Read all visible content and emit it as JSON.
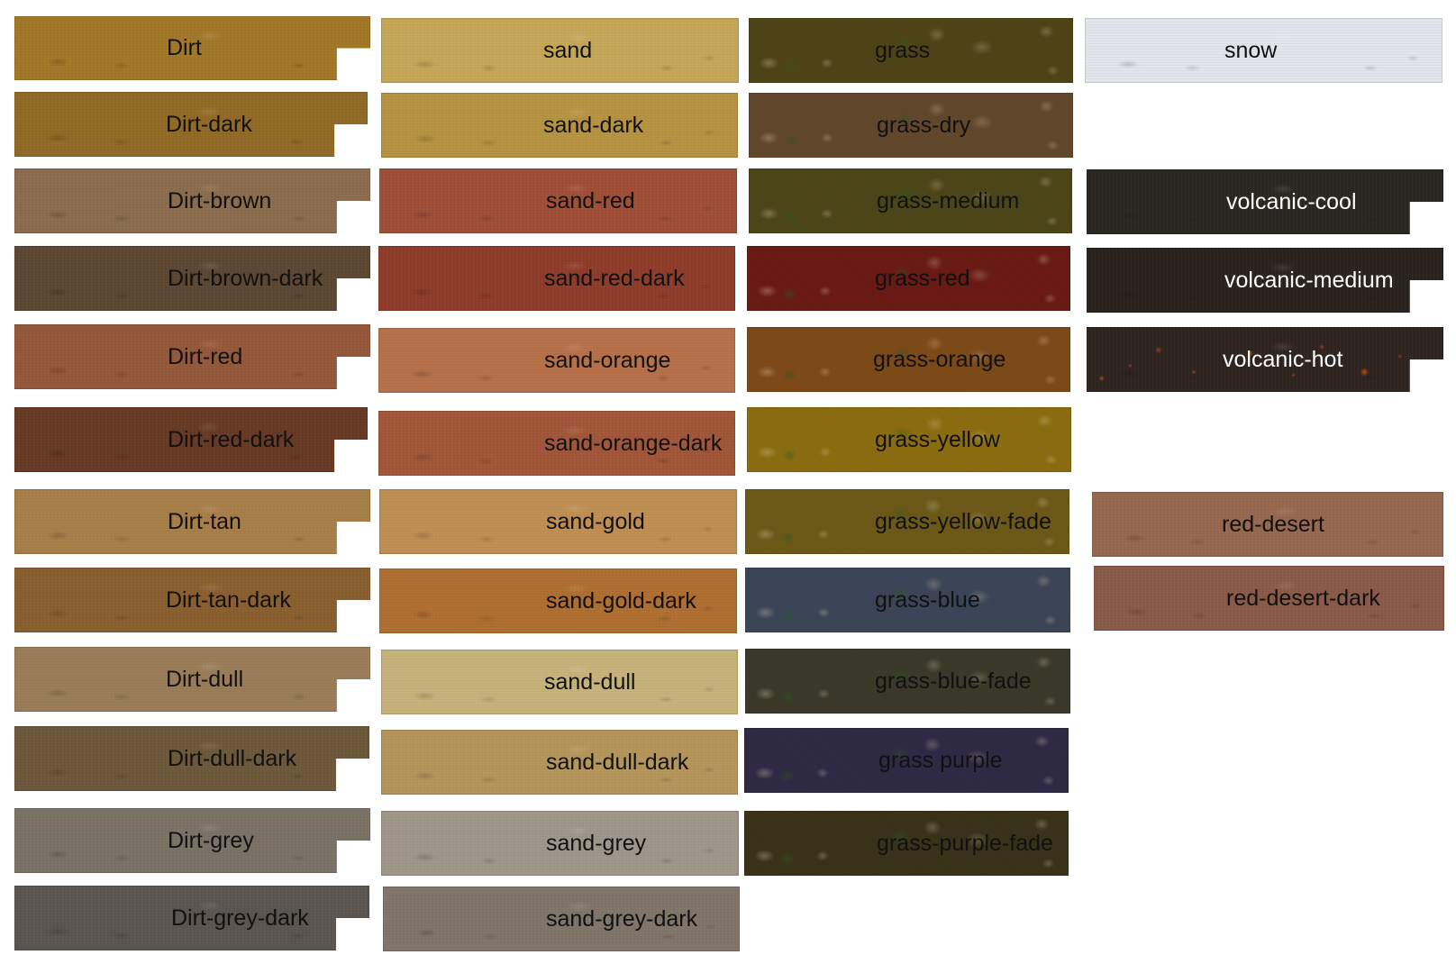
{
  "tiles": [
    {
      "id": "dirt",
      "label": "Dirt",
      "color": "#a27828"
    },
    {
      "id": "dirt-dark",
      "label": "Dirt-dark",
      "color": "#916a25"
    },
    {
      "id": "dirt-brown",
      "label": "Dirt-brown",
      "color": "#8b6c4e"
    },
    {
      "id": "dirt-brown-dark",
      "label": "Dirt-brown-dark",
      "color": "#5c4733"
    },
    {
      "id": "dirt-red",
      "label": "Dirt-red",
      "color": "#94583a"
    },
    {
      "id": "dirt-red-dark",
      "label": "Dirt-red-dark",
      "color": "#663a24"
    },
    {
      "id": "dirt-tan",
      "label": "Dirt-tan",
      "color": "#a87e48"
    },
    {
      "id": "dirt-tan-dark",
      "label": "Dirt-tan-dark",
      "color": "#8a5f30"
    },
    {
      "id": "dirt-dull",
      "label": "Dirt-dull",
      "color": "#9a7d58"
    },
    {
      "id": "dirt-dull-dark",
      "label": "Dirt-dull-dark",
      "color": "#6e583b"
    },
    {
      "id": "dirt-grey",
      "label": "Dirt-grey",
      "color": "#7b7266"
    },
    {
      "id": "dirt-grey-dark",
      "label": "Dirt-grey-dark",
      "color": "#5a5550"
    },
    {
      "id": "sand",
      "label": "sand",
      "color": "#c6a757"
    },
    {
      "id": "sand-dark",
      "label": "sand-dark",
      "color": "#b69340"
    },
    {
      "id": "sand-red",
      "label": "sand-red",
      "color": "#a04e36"
    },
    {
      "id": "sand-red-dark",
      "label": "sand-red-dark",
      "color": "#8e3c2a"
    },
    {
      "id": "sand-orange",
      "label": "sand-orange",
      "color": "#b6704a"
    },
    {
      "id": "sand-orange-dark",
      "label": "sand-orange-dark",
      "color": "#a1563a"
    },
    {
      "id": "sand-gold",
      "label": "sand-gold",
      "color": "#c08e52"
    },
    {
      "id": "sand-gold-dark",
      "label": "sand-gold-dark",
      "color": "#b06e30"
    },
    {
      "id": "sand-dull",
      "label": "sand-dull",
      "color": "#c6b37a"
    },
    {
      "id": "sand-dull-dark",
      "label": "sand-dull-dark",
      "color": "#b5955a"
    },
    {
      "id": "sand-grey",
      "label": "sand-grey",
      "color": "#9f968a"
    },
    {
      "id": "sand-grey-dark",
      "label": "sand-grey-dark",
      "color": "#807568"
    },
    {
      "id": "grass",
      "label": "grass",
      "color": "#4f4418"
    },
    {
      "id": "grass-dry",
      "label": "grass-dry",
      "color": "#62482c"
    },
    {
      "id": "grass-medium",
      "label": "grass-medium",
      "color": "#4c4619"
    },
    {
      "id": "grass-red",
      "label": "grass-red",
      "color": "#6b1a14"
    },
    {
      "id": "grass-orange",
      "label": "grass-orange",
      "color": "#7e4a18"
    },
    {
      "id": "grass-yellow",
      "label": "grass-yellow",
      "color": "#8c6e10"
    },
    {
      "id": "grass-yellow-fade",
      "label": "grass-yellow-fade",
      "color": "#6d5a18"
    },
    {
      "id": "grass-blue",
      "label": "grass-blue",
      "color": "#3c4658"
    },
    {
      "id": "grass-blue-fade",
      "label": "grass-blue-fade",
      "color": "#3b3a2a"
    },
    {
      "id": "grass-purple",
      "label": "grass purple",
      "color": "#2f2a45"
    },
    {
      "id": "grass-purple-fade",
      "label": "grass-purple-fade",
      "color": "#3a331a"
    },
    {
      "id": "snow",
      "label": "snow",
      "color": "#e2e6ec"
    },
    {
      "id": "volcanic-cool",
      "label": "volcanic-cool",
      "color": "#2a2723"
    },
    {
      "id": "volcanic-medium",
      "label": "volcanic-medium",
      "color": "#2a221e"
    },
    {
      "id": "volcanic-hot",
      "label": "volcanic-hot",
      "color": "#2e2420"
    },
    {
      "id": "red-desert",
      "label": "red-desert",
      "color": "#96684f"
    },
    {
      "id": "red-desert-dark",
      "label": "red-desert-dark",
      "color": "#8a5a48"
    }
  ]
}
